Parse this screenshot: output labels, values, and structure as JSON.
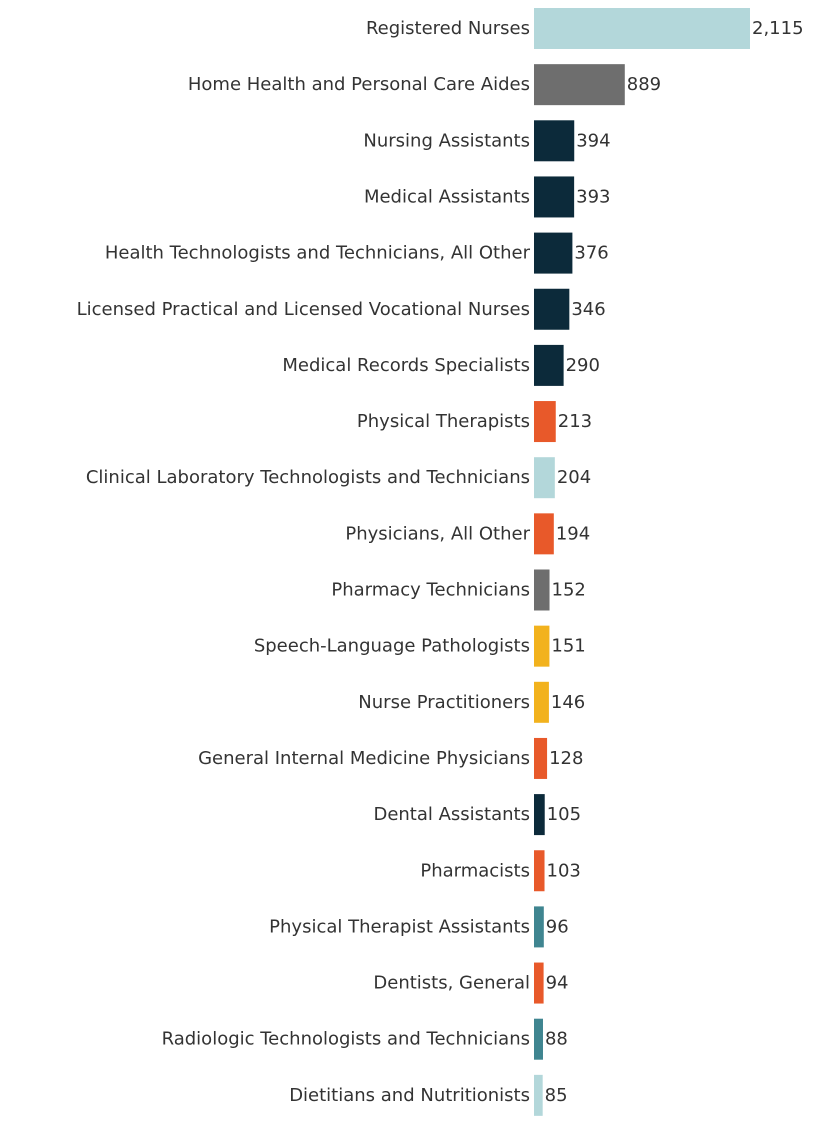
{
  "chart_data": {
    "type": "bar",
    "orientation": "horizontal",
    "title": "",
    "xlabel": "",
    "ylabel": "",
    "xlim": [
      0,
      2115
    ],
    "grid": false,
    "legend": "none",
    "categories": [
      "Registered Nurses",
      "Home Health and Personal Care Aides",
      "Nursing Assistants",
      "Medical Assistants",
      "Health Technologists and Technicians, All Other",
      "Licensed Practical and Licensed Vocational Nurses",
      "Medical Records Specialists",
      "Physical Therapists",
      "Clinical Laboratory Technologists and Technicians",
      "Physicians, All Other",
      "Pharmacy Technicians",
      "Speech-Language Pathologists",
      "Nurse Practitioners",
      "General Internal Medicine Physicians",
      "Dental Assistants",
      "Pharmacists",
      "Physical Therapist Assistants",
      "Dentists, General",
      "Radiologic Technologists and Technicians",
      "Dietitians and Nutritionists"
    ],
    "values": [
      2115,
      889,
      394,
      393,
      376,
      346,
      290,
      213,
      204,
      194,
      152,
      151,
      146,
      128,
      105,
      103,
      96,
      94,
      88,
      85
    ],
    "value_labels": [
      "2,115",
      "889",
      "394",
      "393",
      "376",
      "346",
      "290",
      "213",
      "204",
      "194",
      "152",
      "151",
      "146",
      "128",
      "105",
      "103",
      "96",
      "94",
      "88",
      "85"
    ],
    "colors": [
      "#b3d7da",
      "#6e6e6e",
      "#0c2a3a",
      "#0c2a3a",
      "#0c2a3a",
      "#0c2a3a",
      "#0c2a3a",
      "#e8592a",
      "#b3d7da",
      "#e8592a",
      "#6e6e6e",
      "#f2b21d",
      "#f2b21d",
      "#e8592a",
      "#0c2a3a",
      "#e8592a",
      "#3f8590",
      "#e8592a",
      "#3f8590",
      "#b3d7da"
    ]
  }
}
